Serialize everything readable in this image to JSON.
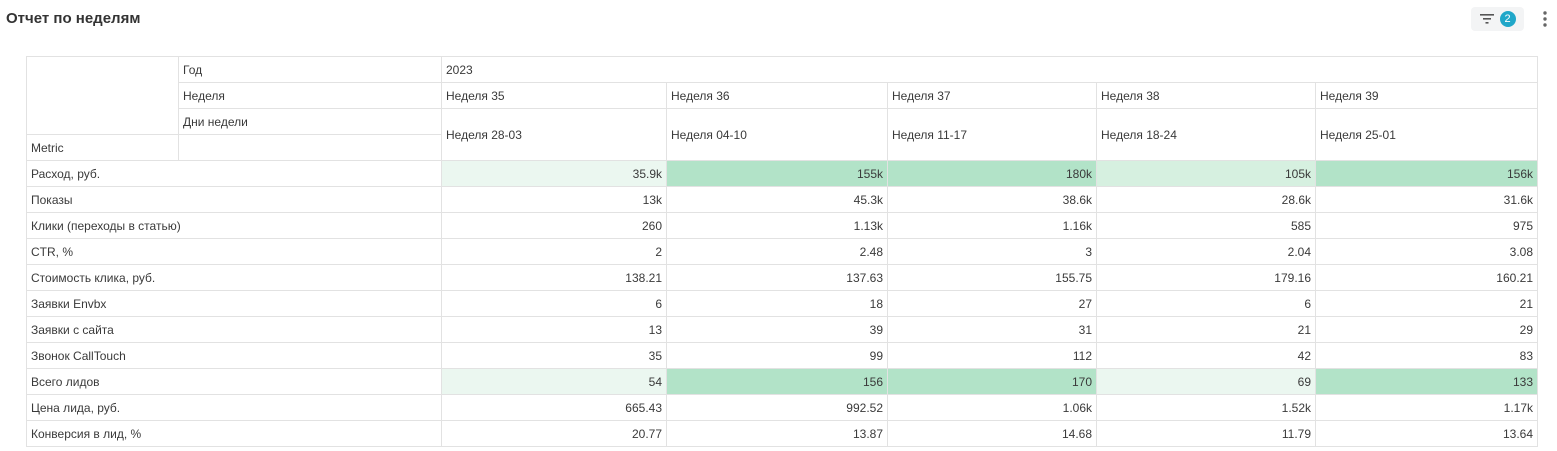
{
  "page": {
    "title": "Отчет по неделям"
  },
  "toolbar": {
    "filter_count": "2",
    "filter_icon": "filter-icon",
    "more_icon": "kebab-menu-icon"
  },
  "table": {
    "row_headers": {
      "year": "Год",
      "week": "Неделя",
      "days": "Дни недели",
      "metric": "Metric"
    },
    "year_value": "2023",
    "weeks": [
      "Неделя 35",
      "Неделя 36",
      "Неделя 37",
      "Неделя 38",
      "Неделя 39"
    ],
    "days": [
      "Неделя 28-03",
      "Неделя 04-10",
      "Неделя 11-17",
      "Неделя 18-24",
      "Неделя 25-01"
    ],
    "rows": [
      {
        "label": "Расход, руб.",
        "values": [
          "35.9k",
          "155k",
          "180k",
          "105k",
          "156k"
        ]
      },
      {
        "label": "Показы",
        "values": [
          "13k",
          "45.3k",
          "38.6k",
          "28.6k",
          "31.6k"
        ]
      },
      {
        "label": "Клики (переходы в статью)",
        "values": [
          "260",
          "1.13k",
          "1.16k",
          "585",
          "975"
        ]
      },
      {
        "label": "CTR, %",
        "values": [
          "2",
          "2.48",
          "3",
          "2.04",
          "3.08"
        ]
      },
      {
        "label": "Стоимость клика, руб.",
        "values": [
          "138.21",
          "137.63",
          "155.75",
          "179.16",
          "160.21"
        ]
      },
      {
        "label": "Заявки Envbx",
        "values": [
          "6",
          "18",
          "27",
          "6",
          "21"
        ]
      },
      {
        "label": "Заявки с сайта",
        "values": [
          "13",
          "39",
          "31",
          "21",
          "29"
        ]
      },
      {
        "label": "Звонок CallTouch",
        "values": [
          "35",
          "99",
          "112",
          "42",
          "83"
        ]
      },
      {
        "label": "Всего лидов",
        "values": [
          "54",
          "156",
          "170",
          "69",
          "133"
        ]
      },
      {
        "label": "Цена лида, руб.",
        "values": [
          "665.43",
          "992.52",
          "1.06k",
          "1.52k",
          "1.17k"
        ]
      },
      {
        "label": "Конверсия в лид, %",
        "values": [
          "20.77",
          "13.87",
          "14.68",
          "11.79",
          "13.64"
        ]
      }
    ]
  },
  "colors": {
    "badge": "#20a7c9",
    "highlight_light": "#ebf7f0",
    "highlight_mid": "#d6f0e0",
    "highlight_strong": "#b2e3c8",
    "border": "#e2e2e2"
  }
}
